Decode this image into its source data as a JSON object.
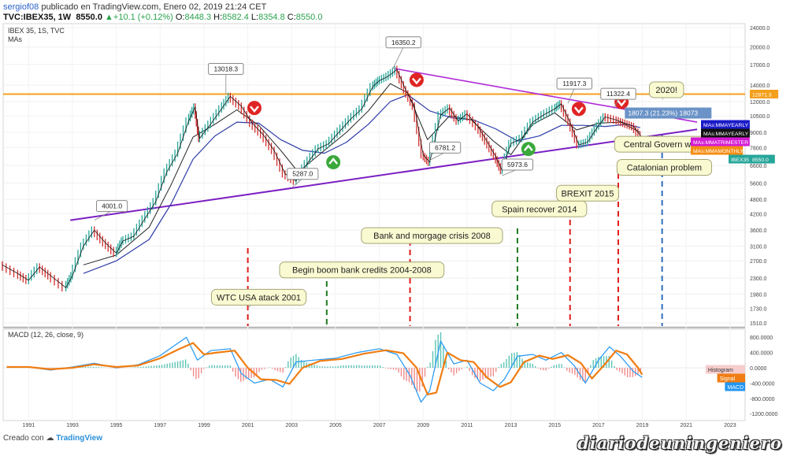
{
  "header": {
    "user": "sergiof08",
    "published": "publicado en TradingView.com, Enero 02, 2019 21:24 CET",
    "symbol": "TVC:IBEX35, 1W",
    "last": "8550.0",
    "arrow": "▲",
    "change": "+10.1 (+0.12%)",
    "o_label": "O:",
    "o_val": "8448.3",
    "h_label": "H:",
    "h_val": "8582.4",
    "l_label": "L:",
    "l_val": "8354.8",
    "c_label": "C:",
    "c_val": "8550.0"
  },
  "pane_title": "IBEX 35, 1S, TVC",
  "pane_sub": "MAs",
  "macd_title": "MACD (12, 26, close, 9)",
  "footer": {
    "prefix": "Creado con",
    "brand": "TradingView"
  },
  "watermark": "diariodeuningeniero",
  "colors": {
    "price_line": "#000000",
    "up_candle": "#26a69a",
    "down_candle": "#d32f2f",
    "ma_short": "#222222",
    "ma_long": "#2d3ca8",
    "support_line": "#7b1fc2",
    "resistance_line": "#b02ad8",
    "horizontal_line": "#f4a01c",
    "red_dash": "#e31b1b",
    "green_dash": "#1f7a1f",
    "blue_dash": "#2d6fb8",
    "signal": "#f07d12",
    "macd": "#2196f3"
  },
  "chart_data": [
    {
      "type": "line",
      "title": "IBEX 35, 1S, TVC",
      "scale": "log",
      "y_ticks": [
        24000,
        20000,
        17000,
        14000,
        12000,
        10500,
        9000,
        7800,
        6600,
        5600,
        4800,
        4200,
        3600,
        3100,
        2700,
        2300,
        1980,
        1730,
        1510
      ],
      "x_ticks": [
        "1991",
        "1993",
        "1995",
        "1997",
        "1999",
        "2001",
        "2003",
        "2005",
        "2007",
        "2009",
        "2011",
        "2013",
        "2015",
        "2017",
        "2019",
        "2021",
        "2023"
      ],
      "series": [
        {
          "name": "IBEX35",
          "x": [
            1989.8,
            1990.5,
            1991.0,
            1991.5,
            1992.0,
            1992.7,
            1993.0,
            1993.5,
            1994.0,
            1994.5,
            1995.0,
            1995.3,
            1995.8,
            1996.3,
            1996.8,
            1997.3,
            1997.8,
            1998.3,
            1998.6,
            1998.8,
            1999.3,
            1999.8,
            2000.2,
            2000.7,
            2001.2,
            2001.7,
            2002.2,
            2002.7,
            2003.2,
            2003.7,
            2004.2,
            2004.7,
            2005.2,
            2005.7,
            2006.2,
            2006.7,
            2007.0,
            2007.4,
            2007.8,
            2008.2,
            2008.6,
            2009.0,
            2009.3,
            2009.8,
            2010.2,
            2010.6,
            2011.0,
            2011.5,
            2011.9,
            2012.3,
            2012.6,
            2013.0,
            2013.5,
            2014.0,
            2014.5,
            2015.0,
            2015.3,
            2015.7,
            2016.1,
            2016.5,
            2016.9,
            2017.3,
            2017.8,
            2018.2,
            2018.6,
            2018.99
          ],
          "y": [
            2600,
            2400,
            2250,
            2550,
            2350,
            2100,
            2350,
            3100,
            3600,
            3200,
            2900,
            3250,
            3400,
            4000,
            4700,
            6200,
            7400,
            10000,
            11400,
            8500,
            9700,
            11200,
            12600,
            11500,
            9800,
            8800,
            7600,
            6100,
            5700,
            6700,
            7700,
            8100,
            9100,
            10200,
            11200,
            13800,
            14600,
            15200,
            16200,
            13400,
            11500,
            7300,
            6800,
            10600,
            11300,
            10000,
            10700,
            9500,
            8300,
            7200,
            6300,
            8100,
            8500,
            9900,
            10600,
            11200,
            11750,
            9900,
            8000,
            8200,
            9300,
            10400,
            10100,
            9800,
            9500,
            8550
          ]
        },
        {
          "name": "MA short",
          "x": [
            1993.5,
            1995.0,
            1996.5,
            1997.5,
            1998.5,
            1999.5,
            2000.5,
            2001.5,
            2002.5,
            2003.3,
            2004.5,
            2005.5,
            2006.5,
            2007.5,
            2008.3,
            2009.2,
            2010.2,
            2011.2,
            2012.2,
            2013.0,
            2014.0,
            2015.0,
            2016.0,
            2017.0,
            2018.0,
            2018.9
          ],
          "y": [
            2600,
            2850,
            3700,
            5500,
            8600,
            9700,
            11100,
            9600,
            7600,
            6200,
            7600,
            9000,
            11000,
            14200,
            13000,
            8400,
            10500,
            10100,
            8300,
            7300,
            9700,
            10800,
            9200,
            9800,
            9900,
            9000
          ]
        },
        {
          "name": "MA long",
          "x": [
            1993.5,
            1995.0,
            1996.5,
            1997.5,
            1998.5,
            1999.5,
            2000.5,
            2001.5,
            2002.5,
            2003.5,
            2004.5,
            2005.5,
            2006.5,
            2007.5,
            2008.3,
            2009.3,
            2010.3,
            2011.3,
            2012.3,
            2013.3,
            2014.3,
            2015.3,
            2016.3,
            2017.3,
            2018.3,
            2018.9
          ],
          "y": [
            2400,
            2700,
            3300,
            4600,
            7000,
            8700,
            9900,
            9800,
            8400,
            7600,
            7400,
            8200,
            9700,
            12000,
            12800,
            11000,
            10300,
            10100,
            9300,
            8300,
            8700,
            9600,
            9600,
            9500,
            9700,
            9400
          ]
        }
      ]
    },
    {
      "type": "line",
      "title": "MACD (12, 26, close, 9)",
      "y_ticks": [
        800,
        400,
        0,
        -400,
        -800,
        -1200
      ],
      "y_tick_labels": [
        "800.0000",
        "400.0000",
        "0.0000",
        "-400.0000",
        "-800.0000",
        "-1200.0000"
      ],
      "series": [
        {
          "name": "MACD",
          "x": [
            1990,
            1991,
            1992,
            1993,
            1994,
            1995,
            1996,
            1997,
            1997.7,
            1998.2,
            1998.7,
            1999.3,
            2000.2,
            2000.7,
            2001.3,
            2002.0,
            2002.6,
            2003.2,
            2004.0,
            2005.0,
            2006.0,
            2007.0,
            2007.8,
            2008.4,
            2008.9,
            2009.3,
            2009.8,
            2010.4,
            2011.0,
            2011.6,
            2012.2,
            2012.7,
            2013.3,
            2014.0,
            2014.6,
            2015.3,
            2015.9,
            2016.4,
            2017.0,
            2017.5,
            2018.0,
            2018.6,
            2018.99
          ],
          "y": [
            30,
            20,
            -60,
            20,
            120,
            0,
            80,
            320,
            600,
            800,
            200,
            450,
            500,
            -150,
            -400,
            -300,
            -500,
            150,
            200,
            250,
            400,
            500,
            350,
            -200,
            -900,
            -600,
            700,
            100,
            200,
            -400,
            -600,
            -300,
            300,
            350,
            200,
            400,
            50,
            -400,
            200,
            550,
            300,
            -100,
            -250
          ]
        },
        {
          "name": "Signal",
          "x": [
            1990,
            1991,
            1992,
            1993,
            1994,
            1995,
            1996,
            1997,
            1997.9,
            1998.5,
            1999.0,
            1999.6,
            2000.4,
            2001.0,
            2001.6,
            2002.3,
            2002.9,
            2003.5,
            2004.3,
            2005.3,
            2006.3,
            2007.3,
            2008.1,
            2008.7,
            2009.2,
            2009.6,
            2010.1,
            2010.7,
            2011.3,
            2011.9,
            2012.5,
            2013.0,
            2013.6,
            2014.3,
            2014.9,
            2015.6,
            2016.2,
            2016.7,
            2017.3,
            2017.8,
            2018.3,
            2018.8,
            2018.99
          ],
          "y": [
            20,
            20,
            -40,
            0,
            90,
            20,
            60,
            250,
            500,
            650,
            350,
            400,
            450,
            0,
            -300,
            -320,
            -420,
            0,
            180,
            230,
            370,
            460,
            380,
            0,
            -700,
            -650,
            400,
            200,
            150,
            -250,
            -500,
            -380,
            150,
            320,
            230,
            330,
            120,
            -280,
            100,
            450,
            350,
            0,
            -180
          ]
        }
      ]
    }
  ],
  "labels": {
    "price_boxes": [
      {
        "text": "13018.3"
      },
      {
        "text": "16350.2"
      },
      {
        "text": "11917.3"
      },
      {
        "text": "11322.4"
      },
      {
        "text": "4001.0"
      },
      {
        "text": "5287.0"
      },
      {
        "text": "6781.2"
      },
      {
        "text": "5973.6"
      }
    ],
    "measure": "1807.3 (21.23%) 18073",
    "events": [
      {
        "text": "WTC USA atack 2001"
      },
      {
        "text": "Begin boom bank credits 2004-2008"
      },
      {
        "text": "Bank and morgage crisis 2008"
      },
      {
        "text": "Spain recover 2014"
      },
      {
        "text": "BREXIT 2015"
      },
      {
        "text": "Central Govern weak"
      },
      {
        "text": "Catalonian problem"
      },
      {
        "text": "2020!"
      }
    ],
    "price_tags": [
      {
        "text": "12871.3",
        "color": "#f4a01c"
      },
      {
        "text": "MAs:MMAYEARLY",
        "color": "#1a1ac8"
      },
      {
        "text": "MAs:MMAYEARLY",
        "color": "#111111"
      },
      {
        "text": "MAs:MMATRIMESTER",
        "color": "#d41ad4"
      },
      {
        "text": "MAs:MMAMONTHLY",
        "color": "#f58d14"
      },
      {
        "text": "IBEX35",
        "color": "#26a69a"
      },
      {
        "text": "8550.0",
        "color": "#26a69a"
      }
    ],
    "macd_tags": [
      {
        "text": "Histogram",
        "color": "#f6cccc",
        "fg": "#333333"
      },
      {
        "text": "Signal",
        "color": "#f07d12",
        "fg": "#ffffff"
      },
      {
        "text": "MACD",
        "color": "#2196f3",
        "fg": "#ffffff"
      }
    ]
  }
}
